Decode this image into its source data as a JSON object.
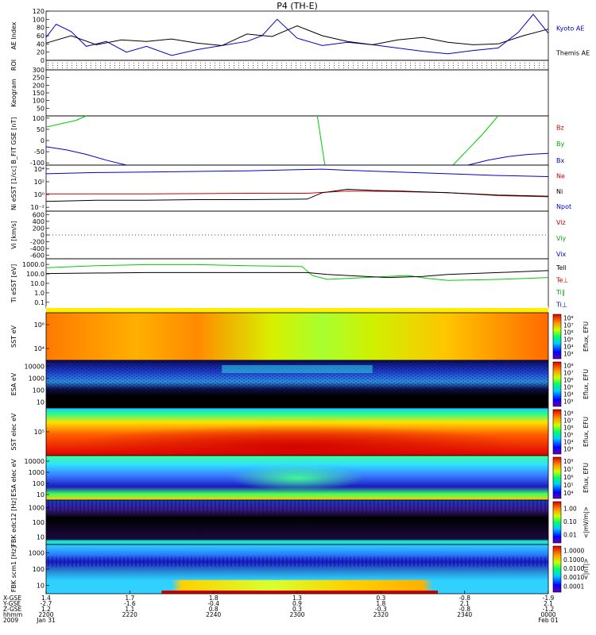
{
  "title": "P4 (TH-E)",
  "chart_data": {
    "type": "line",
    "title": "P4 (TH-E)",
    "x_axis": {
      "row_labels": [
        "X-GSE",
        "Y-GSE",
        "Z-GSE",
        "hhmm",
        "2009"
      ],
      "ticks": [
        {
          "x": "1.4",
          "y": "-2.7",
          "z": "1.2",
          "hhmm": "2200",
          "date": "Jan 31"
        },
        {
          "x": "1.7",
          "y": "-1.6",
          "z": "1.1",
          "hhmm": "2220",
          "date": ""
        },
        {
          "x": "1.8",
          "y": "-0.4",
          "z": "0.8",
          "hhmm": "2240",
          "date": ""
        },
        {
          "x": "1.3",
          "y": "0.9",
          "z": "0.3",
          "hhmm": "2300",
          "date": ""
        },
        {
          "x": "0.3",
          "y": "1.8",
          "z": "-0.3",
          "hhmm": "2320",
          "date": ""
        },
        {
          "x": "-0.8",
          "y": "2.1",
          "z": "-0.8",
          "hhmm": "2340",
          "date": ""
        },
        {
          "x": "-1.9",
          "y": "2.1",
          "z": "-1.2",
          "hhmm": "0000",
          "date": "Feb 01"
        }
      ]
    },
    "panels": [
      {
        "id": "ae",
        "ylabel": "AE Index",
        "yticks": [
          "0",
          "20",
          "40",
          "60",
          "80",
          "100",
          "120"
        ],
        "ylim": [
          0,
          120
        ],
        "legend": [
          {
            "name": "Kyoto AE",
            "color": "#0000cc"
          },
          {
            "name": "Themis AE",
            "color": "#000000"
          }
        ],
        "series": [
          {
            "name": "Kyoto AE",
            "color": "#0000cc",
            "x": [
              0,
              0.02,
              0.05,
              0.08,
              0.12,
              0.16,
              0.2,
              0.25,
              0.3,
              0.35,
              0.4,
              0.43,
              0.46,
              0.5,
              0.55,
              0.6,
              0.65,
              0.7,
              0.75,
              0.8,
              0.85,
              0.9,
              0.94,
              0.97,
              1.0
            ],
            "values": [
              56,
              88,
              70,
              34,
              46,
              20,
              34,
              12,
              26,
              36,
              46,
              60,
              100,
              54,
              36,
              44,
              38,
              30,
              22,
              16,
              24,
              30,
              68,
              112,
              66
            ]
          },
          {
            "name": "Themis AE",
            "color": "#000000",
            "x": [
              0,
              0.05,
              0.1,
              0.15,
              0.2,
              0.25,
              0.3,
              0.35,
              0.4,
              0.45,
              0.5,
              0.55,
              0.6,
              0.65,
              0.7,
              0.75,
              0.8,
              0.85,
              0.9,
              0.95,
              1.0
            ],
            "values": [
              42,
              60,
              38,
              50,
              46,
              52,
              42,
              36,
              64,
              58,
              84,
              60,
              46,
              38,
              50,
              56,
              44,
              38,
              40,
              60,
              76
            ]
          }
        ]
      },
      {
        "id": "roi",
        "ylabel": "ROI"
      },
      {
        "id": "keogram",
        "ylabel": "Keogram",
        "yticks": [
          "50",
          "100",
          "150",
          "200",
          "250",
          "300"
        ],
        "ylim": [
          0,
          300
        ]
      },
      {
        "id": "bfit",
        "ylabel": "B_FIT GSE [nT]",
        "yticks": [
          "-100",
          "-50",
          "0",
          "50",
          "100"
        ],
        "ylim": [
          -110,
          110
        ],
        "legend": [
          {
            "name": "Bz",
            "color": "#cc0000"
          },
          {
            "name": "By",
            "color": "#00aa00"
          },
          {
            "name": "Bx",
            "color": "#0000cc"
          }
        ],
        "series": [
          {
            "name": "Bx",
            "color": "#0000cc",
            "x": [
              0,
              0.04,
              0.08,
              0.12,
              0.16,
              0.84,
              0.88,
              0.92,
              0.96,
              1.0
            ],
            "values": [
              -28,
              -42,
              -62,
              -88,
              -110,
              -110,
              -88,
              -72,
              -62,
              -58
            ]
          },
          {
            "name": "By",
            "color": "#00cc00",
            "x": [
              0,
              0.03,
              0.06,
              0.08
            ],
            "values": [
              60,
              75,
              90,
              110
            ]
          },
          {
            "name": "By",
            "color": "#00cc00",
            "x": [
              0.54,
              0.555
            ],
            "values": [
              110,
              -110
            ]
          },
          {
            "name": "By",
            "color": "#00cc00",
            "x": [
              0.81,
              0.84,
              0.87,
              0.9
            ],
            "values": [
              -110,
              -40,
              30,
              110
            ]
          }
        ]
      },
      {
        "id": "density",
        "ylabel": "Ni eSST [1/cc]",
        "yticks": [
          "10⁻²",
          "10⁰",
          "10²",
          "10⁴"
        ],
        "legend": [
          {
            "name": "Ne",
            "color": "#cc0000"
          },
          {
            "name": "Ni",
            "color": "#000000"
          },
          {
            "name": "Npot",
            "color": "#0000cc"
          }
        ],
        "series": [
          {
            "name": "Npot",
            "color": "#0000cc",
            "x": [
              0,
              0.1,
              0.2,
              0.3,
              0.4,
              0.5,
              0.55,
              0.6,
              0.7,
              0.8,
              0.9,
              1.0
            ],
            "values": [
              3.5,
              3.7,
              3.8,
              3.9,
              4.0,
              4.2,
              4.3,
              4.1,
              3.8,
              3.5,
              3.2,
              3.0
            ]
          },
          {
            "name": "Ne",
            "color": "#cc0000",
            "x": [
              0,
              0.2,
              0.4,
              0.52,
              0.6,
              0.7,
              0.8,
              0.9,
              1.0
            ],
            "values": [
              0.0,
              0.0,
              0.1,
              0.1,
              0.5,
              0.4,
              0.2,
              -0.3,
              -0.5
            ]
          },
          {
            "name": "Ni",
            "color": "#000000",
            "x": [
              0,
              0.1,
              0.2,
              0.3,
              0.4,
              0.52,
              0.55,
              0.6,
              0.65,
              0.7,
              0.8,
              0.9,
              1.0
            ],
            "values": [
              -1.3,
              -1.1,
              -1.1,
              -1.0,
              -1.0,
              -0.9,
              0.2,
              0.8,
              0.6,
              0.5,
              0.2,
              -0.2,
              -0.4
            ]
          }
        ]
      },
      {
        "id": "velocity",
        "ylabel": "Vi [km/s]",
        "yticks": [
          "-600",
          "-400",
          "-200",
          "0",
          "200",
          "400",
          "600"
        ],
        "ylim": [
          -700,
          700
        ],
        "legend": [
          {
            "name": "Viz",
            "color": "#cc0000"
          },
          {
            "name": "Viy",
            "color": "#00aa00"
          },
          {
            "name": "Vix",
            "color": "#0000cc"
          }
        ]
      },
      {
        "id": "temperature",
        "ylabel": "Ti eSST [eV]",
        "yticks": [
          "0.1",
          "1.0",
          "10.0",
          "100.0",
          "1000.0"
        ],
        "legend": [
          {
            "name": "Tell",
            "color": "#000000"
          },
          {
            "name": "Te⊥",
            "color": "#cc0000"
          },
          {
            "name": "Ti∥",
            "color": "#00aa00"
          },
          {
            "name": "Ti⊥",
            "color": "#0000cc"
          }
        ],
        "series": [
          {
            "name": "Ti∥",
            "color": "#00cc00",
            "x": [
              0,
              0.1,
              0.2,
              0.3,
              0.4,
              0.51,
              0.53,
              0.56,
              0.6,
              0.68,
              0.72,
              0.76,
              0.8,
              0.9,
              1.0
            ],
            "values": [
              2.6,
              2.8,
              2.9,
              2.9,
              2.8,
              2.7,
              1.8,
              1.4,
              1.5,
              1.7,
              1.8,
              1.5,
              1.3,
              1.4,
              1.6
            ]
          },
          {
            "name": "Tell",
            "color": "#000000",
            "x": [
              0,
              0.2,
              0.4,
              0.52,
              0.56,
              0.6,
              0.68,
              0.75,
              0.8,
              0.9,
              1.0
            ],
            "values": [
              2.0,
              2.1,
              2.1,
              2.1,
              1.9,
              1.8,
              1.6,
              1.7,
              1.9,
              2.1,
              2.3
            ]
          }
        ]
      },
      {
        "id": "sst_i",
        "type": "heatmap",
        "ylabel": "SST eV",
        "yticks": [
          "10⁴",
          "10⁶"
        ],
        "colorbar": {
          "label": "Eflux, EFU",
          "ticks": [
            "10³",
            "10⁴",
            "10⁵",
            "10⁶",
            "10⁷",
            "10⁸"
          ]
        }
      },
      {
        "id": "esa_i",
        "type": "heatmap",
        "ylabel": "ESA eV",
        "yticks": [
          "10",
          "100",
          "1000",
          "10000"
        ],
        "colorbar": {
          "label": "Eflux, EFU",
          "ticks": [
            "10³",
            "10⁴",
            "10⁵",
            "10⁶",
            "10⁷",
            "10⁸"
          ]
        }
      },
      {
        "id": "sst_e",
        "type": "heatmap",
        "ylabel": "SST elec eV",
        "yticks": [
          "10⁵"
        ],
        "colorbar": {
          "label": "Eflux, EFU",
          "ticks": [
            "10³",
            "10⁴",
            "10⁵",
            "10⁶",
            "10⁷",
            "10⁸"
          ]
        }
      },
      {
        "id": "esa_e",
        "type": "heatmap",
        "ylabel": "ESA elec eV",
        "yticks": [
          "10",
          "100",
          "1000",
          "10000"
        ],
        "colorbar": {
          "label": "Eflux, EFU",
          "ticks": [
            "10⁴",
            "10⁵",
            "10⁶",
            "10⁷",
            "10⁸"
          ]
        }
      },
      {
        "id": "fbk_e",
        "type": "heatmap",
        "ylabel": "FBK edc12 [Hz]",
        "yticks": [
          "10",
          "100",
          "1000"
        ],
        "colorbar": {
          "label": "<|mV/m|>",
          "ticks": [
            "0.01",
            "0.10",
            "1.00"
          ]
        }
      },
      {
        "id": "fbk_b",
        "type": "heatmap",
        "ylabel": "FBK scm1 [Hz]",
        "yticks": [
          "10",
          "100",
          "1000"
        ],
        "colorbar": {
          "label": "<|nT|>",
          "ticks": [
            "0.0001",
            "0.0010",
            "0.0100",
            "0.1000",
            "1.0000"
          ]
        }
      }
    ]
  }
}
